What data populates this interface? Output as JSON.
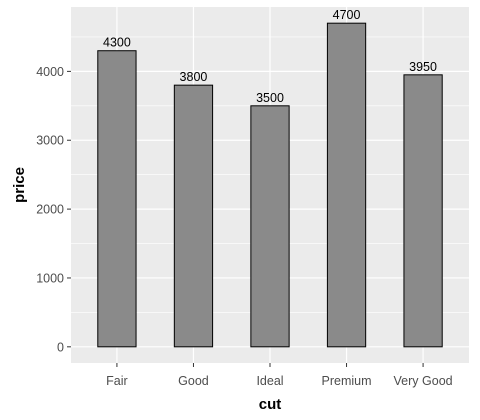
{
  "chart_data": {
    "type": "bar",
    "categories": [
      "Fair",
      "Good",
      "Ideal",
      "Premium",
      "Very Good"
    ],
    "values": [
      4300,
      3800,
      3500,
      4700,
      3950
    ],
    "data_labels": [
      "4300",
      "3800",
      "3500",
      "4700",
      "3950"
    ],
    "xlabel": "cut",
    "ylabel": "price",
    "ylim": [
      -235,
      4935
    ],
    "yticks": [
      0,
      1000,
      2000,
      3000,
      4000
    ],
    "ytick_labels": [
      "0",
      "1000",
      "2000",
      "3000",
      "4000"
    ],
    "grid": true,
    "colors": {
      "panel": "#ebebeb",
      "grid_major": "#ffffff",
      "bar_fill": "#8a8a8a",
      "bar_stroke": "#000000"
    }
  }
}
